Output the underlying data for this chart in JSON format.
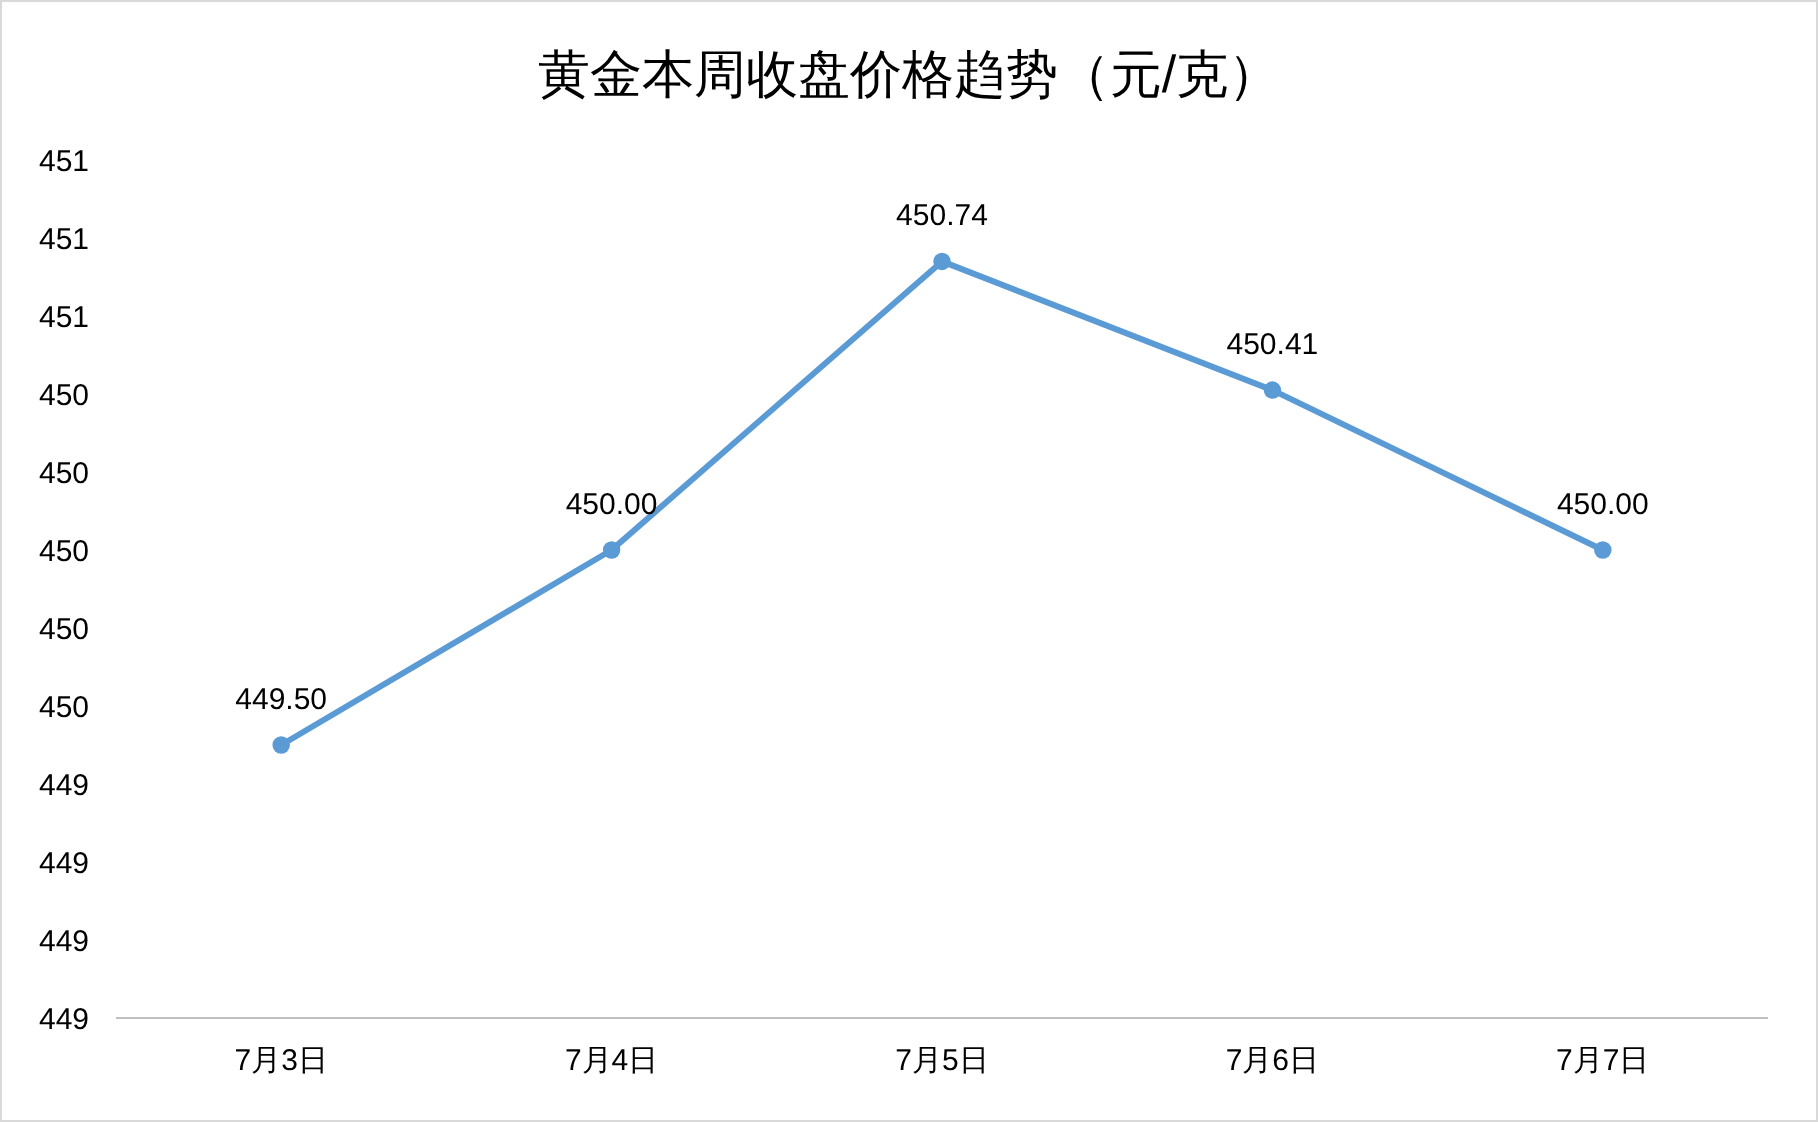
{
  "chart_data": {
    "type": "line",
    "title": "黄金本周收盘价格趋势（元/克）",
    "categories": [
      "7月3日",
      "7月4日",
      "7月5日",
      "7月6日",
      "7月7日"
    ],
    "series": [
      {
        "color": "#5b9bd5",
        "values": [
          449.5,
          450.0,
          450.74,
          450.41,
          450.0
        ]
      }
    ],
    "ylim": [
      448.8,
      451.0
    ],
    "yticks": [
      {
        "value": 448.8,
        "label": "449"
      },
      {
        "value": 449.0,
        "label": "449"
      },
      {
        "value": 449.2,
        "label": "449"
      },
      {
        "value": 449.4,
        "label": "449"
      },
      {
        "value": 449.6,
        "label": "450"
      },
      {
        "value": 449.8,
        "label": "450"
      },
      {
        "value": 450.0,
        "label": "450"
      },
      {
        "value": 450.2,
        "label": "450"
      },
      {
        "value": 450.4,
        "label": "450"
      },
      {
        "value": 450.6,
        "label": "451"
      },
      {
        "value": 450.8,
        "label": "451"
      },
      {
        "value": 451.0,
        "label": "451"
      }
    ],
    "value_labels": [
      [
        "449.50",
        "450.00",
        "450.74",
        "450.41",
        "450.00"
      ]
    ],
    "marker": "circle"
  }
}
